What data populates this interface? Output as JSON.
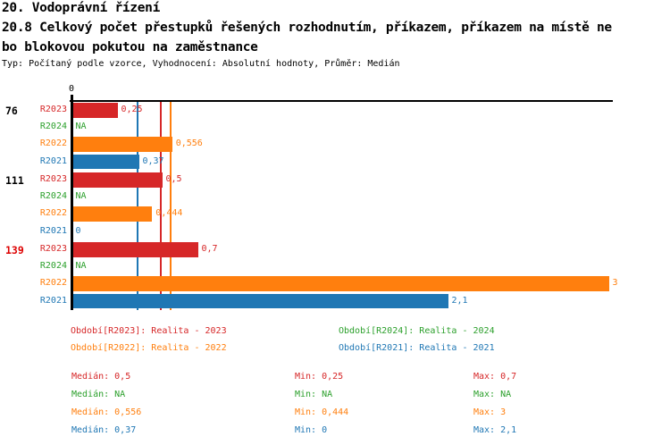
{
  "header": {
    "title_line1": "20. Vodoprávní řízení",
    "title_line2": "20.8 Celkový počet přestupků řešených rozhodnutím, příkazem, příkazem na místě ne",
    "title_line3": "bo blokovou pokutou na zaměstnance",
    "meta": "Typ: Počítaný podle vzorce, Vyhodnocení: Absolutní hodnoty, Průměr: Medián"
  },
  "colors": {
    "R2023": "#d62728",
    "R2024": "#2ca02c",
    "R2022": "#ff7f0e",
    "R2021": "#1f77b4",
    "axis": "#000000",
    "group_label_default": "#000000",
    "group_label_highlight": "#dd0000"
  },
  "chart_data": {
    "type": "bar",
    "orientation": "horizontal",
    "axis": {
      "origin_label": "0",
      "xmin": 0,
      "xmax": 3,
      "grid": false
    },
    "series": [
      {
        "id": "R2023",
        "name": "Realita - 2023",
        "color": "#d62728",
        "median": 0.5
      },
      {
        "id": "R2024",
        "name": "Realita - 2024",
        "color": "#2ca02c",
        "median": null
      },
      {
        "id": "R2022",
        "name": "Realita - 2022",
        "color": "#ff7f0e",
        "median": 0.556
      },
      {
        "id": "R2021",
        "name": "Realita - 2021",
        "color": "#1f77b4",
        "median": 0.37
      }
    ],
    "groups": [
      {
        "label": "76",
        "label_color": "#000000",
        "bars": [
          {
            "series": "R2023",
            "value": 0.25,
            "text": "0,25"
          },
          {
            "series": "R2024",
            "value": null,
            "text": "NA"
          },
          {
            "series": "R2022",
            "value": 0.556,
            "text": "0,556"
          },
          {
            "series": "R2021",
            "value": 0.37,
            "text": "0,37"
          }
        ]
      },
      {
        "label": "111",
        "label_color": "#000000",
        "bars": [
          {
            "series": "R2023",
            "value": 0.5,
            "text": "0,5"
          },
          {
            "series": "R2024",
            "value": null,
            "text": "NA"
          },
          {
            "series": "R2022",
            "value": 0.444,
            "text": "0,444"
          },
          {
            "series": "R2021",
            "value": 0,
            "text": "0"
          }
        ]
      },
      {
        "label": "139",
        "label_color": "#dd0000",
        "bars": [
          {
            "series": "R2023",
            "value": 0.7,
            "text": "0,7"
          },
          {
            "series": "R2024",
            "value": null,
            "text": "NA"
          },
          {
            "series": "R2022",
            "value": 3,
            "text": "3"
          },
          {
            "series": "R2021",
            "value": 2.1,
            "text": "2,1"
          }
        ]
      }
    ]
  },
  "legend": [
    {
      "series": "R2023",
      "text": "Období[R2023]: Realita - 2023"
    },
    {
      "series": "R2024",
      "text": "Období[R2024]: Realita - 2024"
    },
    {
      "series": "R2022",
      "text": "Období[R2022]: Realita - 2022"
    },
    {
      "series": "R2021",
      "text": "Období[R2021]: Realita - 2021"
    }
  ],
  "stats": [
    {
      "series": "R2023",
      "median": "Medián: 0,5",
      "min": "Min: 0,25",
      "max": "Max: 0,7"
    },
    {
      "series": "R2024",
      "median": "Medián: NA",
      "min": "Min: NA",
      "max": "Max: NA"
    },
    {
      "series": "R2022",
      "median": "Medián: 0,556",
      "min": "Min: 0,444",
      "max": "Max: 3"
    },
    {
      "series": "R2021",
      "median": "Medián: 0,37",
      "min": "Min: 0",
      "max": "Max: 2,1"
    }
  ]
}
